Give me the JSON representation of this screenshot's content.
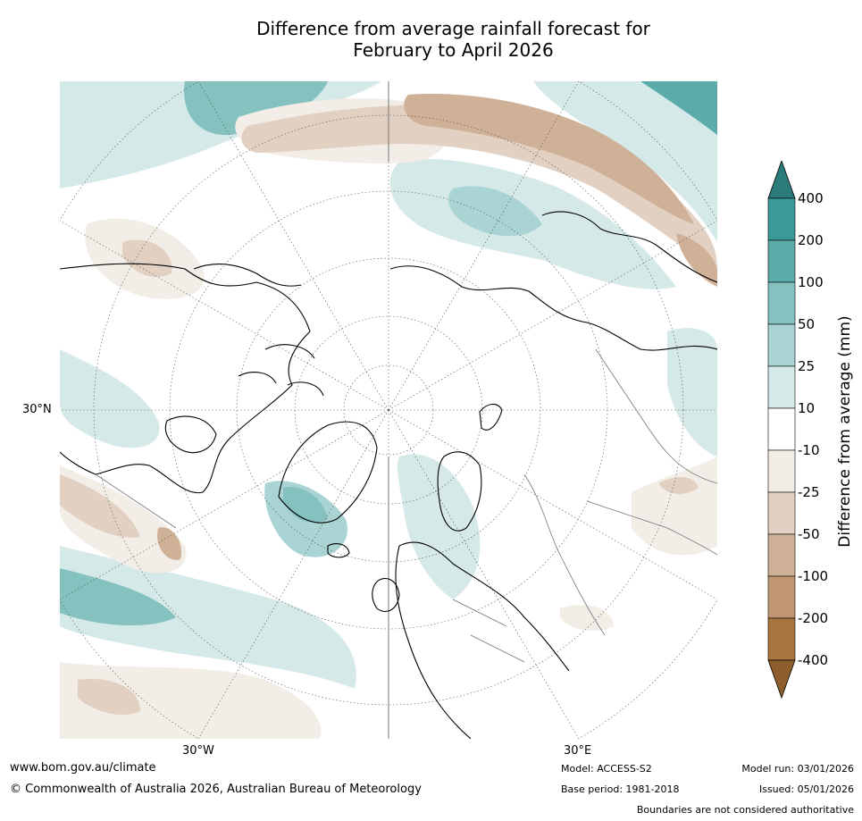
{
  "title": {
    "line1": "Difference from average rainfall forecast for",
    "line2": "February to April 2026"
  },
  "map": {
    "projection": "north-polar-stereographic",
    "lat_label": "30°N",
    "lon_labels": {
      "west": "30°W",
      "east": "30°E"
    }
  },
  "colorbar": {
    "label": "Difference from average (mm)",
    "ticks": [
      "400",
      "200",
      "100",
      "50",
      "25",
      "10",
      "-10",
      "-25",
      "-50",
      "-100",
      "-200",
      "-400"
    ],
    "colors": [
      "#2b7c79",
      "#3a9a97",
      "#5aabaa",
      "#84c1bf",
      "#a9d4d3",
      "#d5e9e8",
      "#ffffff",
      "#f2ede7",
      "#e2d1c2",
      "#cfb197",
      "#bf9671",
      "#a8753f",
      "#8e5f2c"
    ],
    "palette": {
      "wet1": "#d5e9e8",
      "wet2": "#a9d4d3",
      "wet3": "#84c1bf",
      "wet4": "#5aabaa",
      "dry1": "#f2ede7",
      "dry2": "#e2d1c2",
      "dry3": "#cfb197"
    }
  },
  "footer": {
    "url": "www.bom.gov.au/climate",
    "copyright": "© Commonwealth of Australia 2026, Australian Bureau of Meteorology",
    "model": "Model: ACCESS-S2",
    "base_period": "Base period: 1981-2018",
    "model_run": "Model run: 03/01/2026",
    "issued": "Issued: 05/01/2026",
    "disclaimer": "Boundaries are not considered authoritative"
  }
}
